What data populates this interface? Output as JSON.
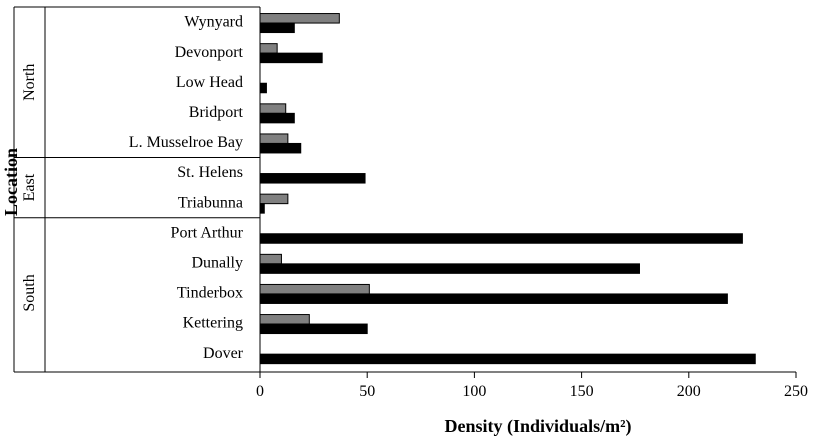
{
  "chart_data": {
    "type": "bar",
    "orientation": "horizontal",
    "title": "",
    "xlabel": "Density (Individuals/m²)",
    "ylabel": "Location",
    "xlim": [
      0,
      250
    ],
    "xticks": [
      "0",
      "50",
      "100",
      "150",
      "200",
      "250"
    ],
    "grid": false,
    "legend": "none",
    "colors": {
      "series_1": "#808080",
      "series_2": "#000000"
    },
    "categories": [
      "Wynyard",
      "Devonport",
      "Low Head",
      "Bridport",
      "L. Musselroe Bay",
      "St. Helens",
      "Triabunna",
      "Port Arthur",
      "Dunally",
      "Tinderbox",
      "Kettering",
      "Dover"
    ],
    "groups": [
      {
        "name": "North",
        "categories": [
          "Wynyard",
          "Devonport",
          "Low Head",
          "Bridport",
          "L. Musselroe Bay"
        ]
      },
      {
        "name": "East",
        "categories": [
          "St. Helens",
          "Triabunna"
        ]
      },
      {
        "name": "South",
        "categories": [
          "Port Arthur",
          "Dunally",
          "Tinderbox",
          "Kettering",
          "Dover"
        ]
      }
    ],
    "series": [
      {
        "values": [
          37,
          8,
          0,
          12,
          13,
          0,
          13,
          0,
          10,
          51,
          23,
          0
        ]
      },
      {
        "values": [
          16,
          29,
          3,
          16,
          19,
          49,
          2,
          225,
          177,
          218,
          50,
          231
        ]
      }
    ]
  }
}
